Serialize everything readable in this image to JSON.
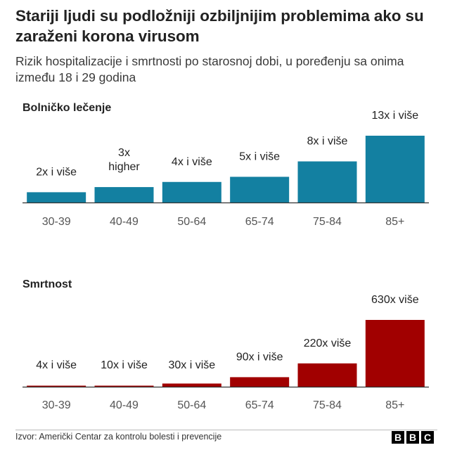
{
  "title": "Stariji ljudi su podložniji ozbiljnijim problemima ako su zaraženi korona virusom",
  "subtitle": "Rizik hospitalizacije i smrtnosti po starosnoj dobi, u poređenju sa onima između 18 i 29 godina",
  "source": "Izvor: Američki Centar za kontrolu bolesti i prevencije",
  "logo": [
    "B",
    "B",
    "C"
  ],
  "colors": {
    "hosp": "#1380A1",
    "death": "#A10000",
    "axis": "#333333"
  },
  "chart_data": [
    {
      "type": "bar",
      "title": "Bolničko lečenje",
      "categories": [
        "30-39",
        "40-49",
        "50-64",
        "65-74",
        "75-84",
        "85+"
      ],
      "values": [
        2,
        3,
        4,
        5,
        8,
        13
      ],
      "labels": [
        "2x i više",
        "3x higher",
        "4x i više",
        "5x i više",
        "8x i više",
        "13x i više"
      ],
      "ylim": [
        0,
        13
      ]
    },
    {
      "type": "bar",
      "title": "Smrtnost",
      "categories": [
        "30-39",
        "40-49",
        "50-64",
        "65-74",
        "75-84",
        "85+"
      ],
      "values": [
        4,
        10,
        30,
        90,
        220,
        630
      ],
      "labels": [
        "4x i više",
        "10x i više",
        "30x i više",
        "90x i više",
        "220x više",
        "630x više"
      ],
      "ylim": [
        0,
        630
      ]
    }
  ]
}
